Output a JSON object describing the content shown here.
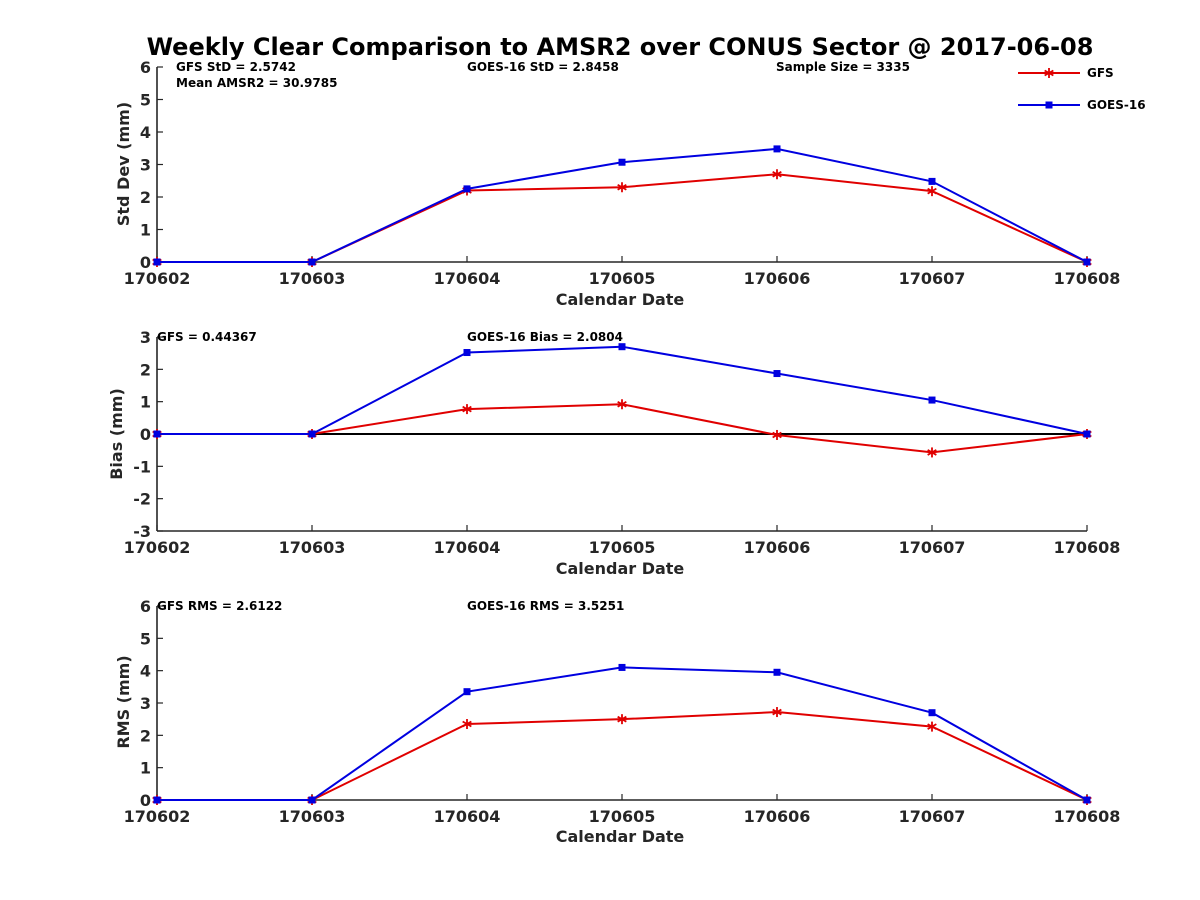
{
  "chart_data": {
    "title": "Weekly Clear Comparison to AMSR2 over CONUS Sector @ 2017-06-08",
    "legend": {
      "placement": "top-right",
      "entries": [
        {
          "name": "GFS",
          "color": "#e00000",
          "marker": "asterisk"
        },
        {
          "name": "GOES-16",
          "color": "#0000e0",
          "marker": "square"
        }
      ]
    },
    "panels": [
      {
        "id": "std",
        "type": "line",
        "categories": [
          "170602",
          "170603",
          "170604",
          "170605",
          "170606",
          "170607",
          "170608"
        ],
        "xlabel": "Calendar Date",
        "ylabel": "Std Dev (mm)",
        "ylim": [
          0,
          6
        ],
        "yticks": [
          "0",
          "1",
          "2",
          "3",
          "4",
          "5",
          "6"
        ],
        "zero_line": false,
        "annotations": [
          "GFS StD = 2.5742",
          "Mean AMSR2 = 30.9785",
          "GOES-16 StD = 2.8458",
          "Sample Size = 3335"
        ],
        "series": [
          {
            "name": "GFS",
            "values": [
              0,
              0,
              2.2,
              2.3,
              2.7,
              2.18,
              0
            ]
          },
          {
            "name": "GOES-16",
            "values": [
              0,
              0,
              2.25,
              3.07,
              3.48,
              2.48,
              0
            ]
          }
        ]
      },
      {
        "id": "bias",
        "type": "line",
        "categories": [
          "170602",
          "170603",
          "170604",
          "170605",
          "170606",
          "170607",
          "170608"
        ],
        "xlabel": "Calendar Date",
        "ylabel": "Bias (mm)",
        "ylim": [
          -3,
          3
        ],
        "yticks": [
          "-3",
          "-2",
          "-1",
          "0",
          "1",
          "2",
          "3"
        ],
        "zero_line": true,
        "annotations": [
          "GFS = 0.44367",
          "GOES-16 Bias  = 2.0804"
        ],
        "series": [
          {
            "name": "GFS",
            "values": [
              0,
              0,
              0.77,
              0.92,
              -0.03,
              -0.57,
              0
            ]
          },
          {
            "name": "GOES-16",
            "values": [
              0,
              0,
              2.52,
              2.7,
              1.87,
              1.05,
              0
            ]
          }
        ]
      },
      {
        "id": "rms",
        "type": "line",
        "categories": [
          "170602",
          "170603",
          "170604",
          "170605",
          "170606",
          "170607",
          "170608"
        ],
        "xlabel": "Calendar Date",
        "ylabel": "RMS (mm)",
        "ylim": [
          0,
          6
        ],
        "yticks": [
          "0",
          "1",
          "2",
          "3",
          "4",
          "5",
          "6"
        ],
        "zero_line": false,
        "annotations": [
          "GFS RMS = 2.6122",
          "GOES-16 RMS = 3.5251"
        ],
        "series": [
          {
            "name": "GFS",
            "values": [
              0,
              0,
              2.35,
              2.5,
              2.72,
              2.27,
              0
            ]
          },
          {
            "name": "GOES-16",
            "values": [
              0,
              0,
              3.35,
              4.1,
              3.95,
              2.7,
              0
            ]
          }
        ]
      }
    ]
  }
}
